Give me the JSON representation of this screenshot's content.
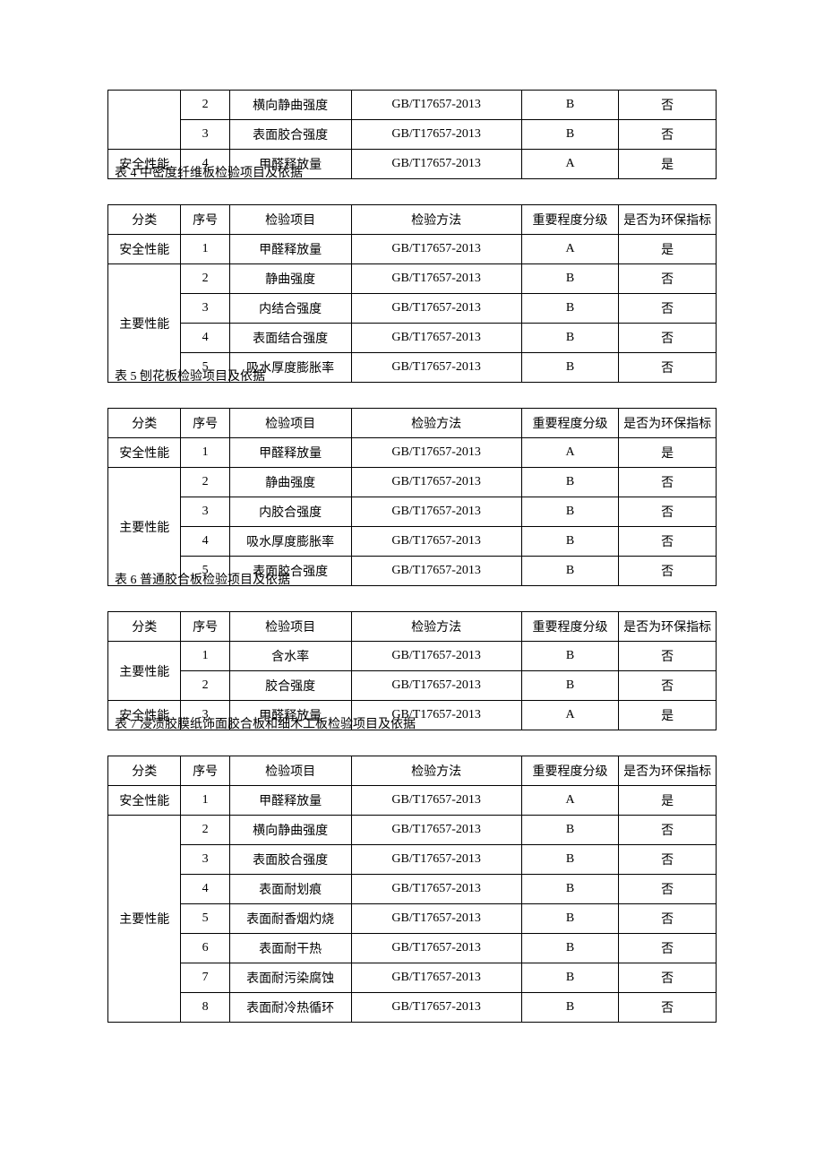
{
  "tables": {
    "t0": {
      "rows": [
        [
          "",
          "2",
          "横向静曲强度",
          "GB/T17657-2013",
          "B",
          "否"
        ],
        [
          "",
          "3",
          "表面胶合强度",
          "GB/T17657-2013",
          "B",
          "否"
        ],
        [
          "安全性能",
          "4",
          "甲醛释放量",
          "GB/T17657-2013",
          "A",
          "是"
        ]
      ]
    },
    "t4": {
      "caption": "表 4 中密度纤维板检验项目及依据",
      "headers": [
        "分类",
        "序号",
        "检验项目",
        "检验方法",
        "重要程度分级",
        "是否为环保指标"
      ],
      "rows": [
        [
          "安全性能",
          "1",
          "甲醛释放量",
          "GB/T17657-2013",
          "A",
          "是"
        ],
        [
          "",
          "2",
          "静曲强度",
          "GB/T17657-2013",
          "B",
          "否"
        ],
        [
          "主要性能",
          "3",
          "内结合强度",
          "GB/T17657-2013",
          "B",
          "否"
        ],
        [
          "",
          "4",
          "表面结合强度",
          "GB/T17657-2013",
          "B",
          "否"
        ],
        [
          "",
          "5",
          "吸水厚度膨胀率",
          "GB/T17657-2013",
          "B",
          "否"
        ]
      ]
    },
    "t5": {
      "caption": "表 5 刨花板检验项目及依据",
      "headers": [
        "分类",
        "序号",
        "检验项目",
        "检验方法",
        "重要程度分级",
        "是否为环保指标"
      ],
      "rows": [
        [
          "安全性能",
          "1",
          "甲醛释放量",
          "GB/T17657-2013",
          "A",
          "是"
        ],
        [
          "",
          "2",
          "静曲强度",
          "GB/T17657-2013",
          "B",
          "否"
        ],
        [
          "主要性能",
          "3",
          "内胶合强度",
          "GB/T17657-2013",
          "B",
          "否"
        ],
        [
          "",
          "4",
          "吸水厚度膨胀率",
          "GB/T17657-2013",
          "B",
          "否"
        ],
        [
          "",
          "5",
          "表面胶合强度",
          "GB/T17657-2013",
          "B",
          "否"
        ]
      ]
    },
    "t6": {
      "caption": "表 6 普通胶合板检验项目及依据",
      "headers": [
        "分类",
        "序号",
        "检验项目",
        "检验方法",
        "重要程度分级",
        "是否为环保指标"
      ],
      "rows": [
        [
          "主要性能",
          "1",
          "含水率",
          "GB/T17657-2013",
          "B",
          "否"
        ],
        [
          "",
          "2",
          "胶合强度",
          "GB/T17657-2013",
          "B",
          "否"
        ],
        [
          "安全性能",
          "3",
          "甲醛释放量",
          "GB/T17657-2013",
          "A",
          "是"
        ]
      ]
    },
    "t7": {
      "caption": "表 7 浸渍胶膜纸饰面胶合板和细木工板检验项目及依据",
      "headers": [
        "分类",
        "序号",
        "检验项目",
        "检验方法",
        "重要程度分级",
        "是否为环保指标"
      ],
      "rows": [
        [
          "安全性能",
          "1",
          "甲醛释放量",
          "GB/T17657-2013",
          "A",
          "是"
        ],
        [
          "",
          "2",
          "横向静曲强度",
          "GB/T17657-2013",
          "B",
          "否"
        ],
        [
          "主要性能",
          "3",
          "表面胶合强度",
          "GB/T17657-2013",
          "B",
          "否"
        ],
        [
          "",
          "4",
          "表面耐划痕",
          "GB/T17657-2013",
          "B",
          "否"
        ],
        [
          "",
          "5",
          "表面耐香烟灼烧",
          "GB/T17657-2013",
          "B",
          "否"
        ],
        [
          "",
          "6",
          "表面耐干热",
          "GB/T17657-2013",
          "B",
          "否"
        ],
        [
          "",
          "7",
          "表面耐污染腐蚀",
          "GB/T17657-2013",
          "B",
          "否"
        ],
        [
          "",
          "8",
          "表面耐冷热循环",
          "GB/T17657-2013",
          "B",
          "否"
        ]
      ]
    }
  }
}
